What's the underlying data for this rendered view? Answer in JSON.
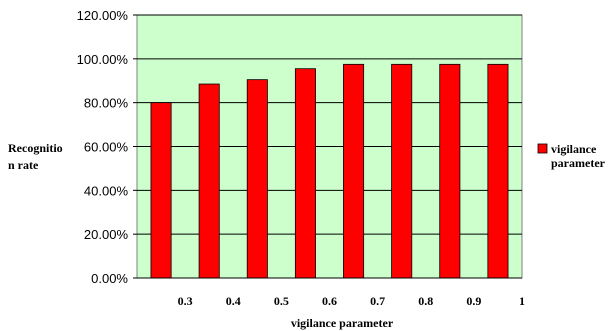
{
  "chart_data": {
    "type": "bar",
    "categories": [
      "0.3",
      "0.4",
      "0.5",
      "0.6",
      "0.7",
      "0.8",
      "0.9",
      "1"
    ],
    "series": [
      {
        "name": "vigilance parameter",
        "values": [
          0.8,
          0.885,
          0.905,
          0.955,
          0.975,
          0.975,
          0.975,
          0.975
        ],
        "color": "#ff0000"
      }
    ],
    "ylim": [
      0,
      1.2
    ],
    "yticks": [
      "0.00%",
      "20.00%",
      "40.00%",
      "60.00%",
      "80.00%",
      "100.00%",
      "120.00%"
    ],
    "ylabel_lines": [
      "Recognitio",
      "n rate"
    ],
    "xlabel": "vigilance parameter",
    "legend": {
      "label_lines": [
        "vigilance",
        "parameter"
      ],
      "position": "right"
    },
    "grid": true,
    "plot_background": "#ccffcc",
    "bar_color": "#ff0000"
  }
}
